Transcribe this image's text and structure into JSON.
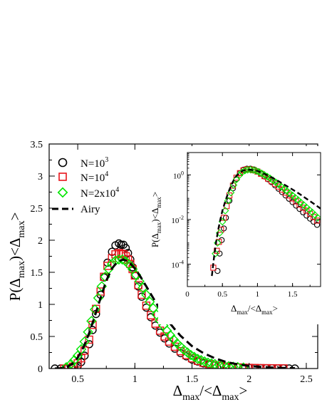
{
  "colors": {
    "n1e3": "#000000",
    "n1e4": "#e8141a",
    "n2e4": "#00e600",
    "airy": "#000000",
    "axes": "#000000",
    "background": "#ffffff"
  },
  "chart_data": [
    {
      "id": "main",
      "type": "scatter",
      "xlabel": {
        "base": "Δ",
        "sub1": "max",
        "mid": "/<Δ",
        "sub2": "max",
        "end": ">"
      },
      "ylabel": {
        "pre": "P(Δ",
        "sub1": "max",
        "mid": ")<Δ",
        "sub2": "max",
        "end": ">"
      },
      "xlim": [
        0.25,
        2.6
      ],
      "ylim": [
        0,
        3.5
      ],
      "xticks": [
        0.5,
        1,
        1.5,
        2,
        2.5
      ],
      "xtick_labels": [
        "0.5",
        "1",
        "1.5",
        "2",
        "2.5"
      ],
      "yticks": [
        0,
        0.5,
        1,
        1.5,
        2,
        2.5,
        3,
        3.5
      ],
      "ytick_labels": [
        "0",
        "0.5",
        "1",
        "1.5",
        "2",
        "2.5",
        "3",
        "3.5"
      ],
      "grid": false,
      "legend": {
        "placement": "top-left",
        "entries": [
          {
            "series": "N1e3",
            "base": "N=10",
            "sup": "3",
            "marker": "circle"
          },
          {
            "series": "N1e4",
            "base": "N=10",
            "sup": "4",
            "marker": "square"
          },
          {
            "series": "N2e4",
            "base": "N=2x10",
            "sup": "4",
            "marker": "diamond"
          },
          {
            "series": "airy",
            "text": "Airy",
            "marker": "dashed-line"
          }
        ]
      },
      "series": [
        {
          "id": "N1e3",
          "marker": "circle",
          "color": "#000000",
          "x": [
            0.3,
            0.35,
            0.4,
            0.45,
            0.5,
            0.53,
            0.56,
            0.6,
            0.63,
            0.66,
            0.7,
            0.73,
            0.76,
            0.8,
            0.83,
            0.86,
            0.88,
            0.9,
            0.92,
            0.94,
            0.96,
            0.98,
            1.0,
            1.03,
            1.06,
            1.1,
            1.14,
            1.18,
            1.22,
            1.26,
            1.3,
            1.35,
            1.4,
            1.45,
            1.5,
            1.55,
            1.6,
            1.65,
            1.7,
            1.75,
            1.8,
            1.85,
            1.9,
            1.95,
            2.0,
            2.05,
            2.1,
            2.15,
            2.2,
            2.25,
            2.3,
            2.35,
            2.4
          ],
          "y": [
            0,
            0,
            0,
            0.01,
            0.04,
            0.1,
            0.2,
            0.38,
            0.6,
            0.85,
            1.15,
            1.42,
            1.65,
            1.82,
            1.92,
            1.95,
            1.93,
            1.93,
            1.88,
            1.8,
            1.7,
            1.58,
            1.45,
            1.28,
            1.12,
            0.95,
            0.8,
            0.67,
            0.56,
            0.47,
            0.39,
            0.31,
            0.24,
            0.19,
            0.14,
            0.11,
            0.08,
            0.06,
            0.05,
            0.04,
            0.03,
            0.025,
            0.02,
            0.015,
            0.01,
            0.008,
            0.006,
            0.005,
            0.004,
            0.003,
            0.002,
            0.001,
            0.001
          ]
        },
        {
          "id": "N1e4",
          "marker": "square",
          "color": "#e8141a",
          "x": [
            0.38,
            0.42,
            0.46,
            0.5,
            0.53,
            0.56,
            0.6,
            0.63,
            0.66,
            0.7,
            0.73,
            0.76,
            0.8,
            0.83,
            0.86,
            0.88,
            0.9,
            0.92,
            0.94,
            0.96,
            0.98,
            1.0,
            1.03,
            1.06,
            1.1,
            1.14,
            1.18,
            1.22,
            1.26,
            1.3,
            1.35,
            1.4,
            1.45,
            1.5,
            1.55,
            1.6,
            1.65,
            1.7,
            1.75,
            1.8,
            1.85,
            1.9,
            1.95,
            2.0,
            2.05,
            2.1,
            2.15,
            2.2,
            2.25,
            2.3
          ],
          "y": [
            0,
            0.01,
            0.03,
            0.08,
            0.16,
            0.28,
            0.45,
            0.68,
            0.93,
            1.2,
            1.43,
            1.6,
            1.72,
            1.78,
            1.8,
            1.79,
            1.78,
            1.75,
            1.7,
            1.63,
            1.55,
            1.45,
            1.3,
            1.15,
            0.98,
            0.83,
            0.7,
            0.59,
            0.5,
            0.42,
            0.34,
            0.27,
            0.21,
            0.16,
            0.12,
            0.09,
            0.07,
            0.05,
            0.04,
            0.03,
            0.023,
            0.017,
            0.013,
            0.01,
            0.008,
            0.006,
            0.005,
            0.004,
            0.003,
            0.002
          ]
        },
        {
          "id": "N2e4",
          "marker": "diamond",
          "color": "#00e600",
          "x": [
            0.4,
            0.44,
            0.47,
            0.5,
            0.53,
            0.56,
            0.59,
            0.62,
            0.65,
            0.68,
            0.71,
            0.74,
            0.77,
            0.8,
            0.83,
            0.86,
            0.89,
            0.92,
            0.95,
            0.98,
            1.01,
            1.04,
            1.07,
            1.1,
            1.13,
            1.16,
            1.19,
            1.22,
            1.25,
            1.28,
            1.31,
            1.34,
            1.37,
            1.4,
            1.43,
            1.46,
            1.49,
            1.52,
            1.55,
            1.58,
            1.61,
            1.64,
            1.67,
            1.7,
            1.74,
            1.78,
            1.82,
            1.86,
            1.9,
            1.95
          ],
          "y": [
            0.02,
            0.07,
            0.13,
            0.2,
            0.3,
            0.42,
            0.57,
            0.74,
            0.92,
            1.1,
            1.28,
            1.43,
            1.55,
            1.63,
            1.68,
            1.7,
            1.7,
            1.67,
            1.62,
            1.55,
            1.46,
            1.36,
            1.26,
            1.15,
            1.04,
            0.94,
            0.84,
            0.75,
            0.67,
            0.59,
            0.52,
            0.45,
            0.39,
            0.34,
            0.29,
            0.25,
            0.21,
            0.18,
            0.15,
            0.13,
            0.11,
            0.09,
            0.08,
            0.07,
            0.055,
            0.045,
            0.035,
            0.028,
            0.022,
            0.016
          ]
        },
        {
          "id": "airy",
          "marker": "dashed-line",
          "color": "#000000",
          "x": [
            0.3,
            0.35,
            0.4,
            0.45,
            0.5,
            0.55,
            0.6,
            0.65,
            0.7,
            0.75,
            0.8,
            0.85,
            0.9,
            0.95,
            1.0,
            1.05,
            1.1,
            1.15,
            1.2,
            1.25,
            1.3,
            1.35,
            1.4,
            1.5,
            1.6,
            1.7,
            1.8,
            1.9,
            2.0,
            2.1,
            2.2,
            2.3,
            2.4
          ],
          "y": [
            0,
            0.004,
            0.02,
            0.07,
            0.17,
            0.33,
            0.55,
            0.82,
            1.1,
            1.37,
            1.56,
            1.67,
            1.7,
            1.66,
            1.56,
            1.43,
            1.28,
            1.13,
            0.98,
            0.84,
            0.72,
            0.61,
            0.51,
            0.35,
            0.24,
            0.16,
            0.1,
            0.065,
            0.04,
            0.025,
            0.015,
            0.009,
            0.005
          ]
        }
      ]
    },
    {
      "id": "inset",
      "type": "scatter",
      "log_y": true,
      "xlabel": {
        "base": "Δ",
        "sub1": "max",
        "mid": "/<Δ",
        "sub2": "max",
        "end": ">"
      },
      "ylabel": {
        "pre": "P(Δ",
        "sub1": "max",
        "mid": ")<Δ",
        "sub2": "max",
        "end": ">"
      },
      "xlim": [
        0,
        1.9
      ],
      "ylim": [
        1e-05,
        10
      ],
      "xticks": [
        0,
        0.5,
        1,
        1.5
      ],
      "xtick_labels": [
        "0",
        "0.5",
        "1",
        "1.5"
      ],
      "yticks": [
        0.0001,
        0.01,
        1
      ],
      "ytick_labels": [
        {
          "base": "10",
          "sup": "-4"
        },
        {
          "base": "10",
          "sup": "-2"
        },
        {
          "base": "10",
          "sup": "0"
        }
      ],
      "grid": false,
      "series": [
        {
          "id": "N1e3",
          "marker": "circle",
          "color": "#000000",
          "x": [
            0.43,
            0.46,
            0.49,
            0.52,
            0.55,
            0.6,
            0.65,
            0.7,
            0.75,
            0.8,
            0.85,
            0.9,
            0.95,
            1.0,
            1.05,
            1.1,
            1.15,
            1.2,
            1.25,
            1.3,
            1.35,
            1.4,
            1.45,
            1.5,
            1.55,
            1.6,
            1.65,
            1.7,
            1.75,
            1.8,
            1.85
          ],
          "y": [
            5e-05,
            0.0003,
            0.0012,
            0.004,
            0.012,
            0.07,
            0.25,
            0.65,
            1.2,
            1.7,
            1.9,
            1.9,
            1.75,
            1.45,
            1.12,
            0.85,
            0.63,
            0.47,
            0.34,
            0.24,
            0.17,
            0.12,
            0.085,
            0.06,
            0.042,
            0.03,
            0.021,
            0.015,
            0.011,
            0.008,
            0.0058
          ]
        },
        {
          "id": "N1e4",
          "marker": "square",
          "color": "#e8141a",
          "x": [
            0.37,
            0.42,
            0.45,
            0.48,
            0.52,
            0.56,
            0.6,
            0.65,
            0.7,
            0.75,
            0.8,
            0.85,
            0.9,
            0.95,
            1.0,
            1.05,
            1.1,
            1.15,
            1.2,
            1.25,
            1.3,
            1.35,
            1.4,
            1.45,
            1.5,
            1.55,
            1.6,
            1.65,
            1.7,
            1.75,
            1.8,
            1.85
          ],
          "y": [
            7e-05,
            0.0004,
            0.001,
            0.0035,
            0.012,
            0.04,
            0.12,
            0.33,
            0.75,
            1.2,
            1.6,
            1.78,
            1.78,
            1.62,
            1.4,
            1.12,
            0.88,
            0.68,
            0.52,
            0.4,
            0.3,
            0.22,
            0.16,
            0.12,
            0.088,
            0.065,
            0.047,
            0.034,
            0.025,
            0.018,
            0.013,
            0.009
          ]
        },
        {
          "id": "N2e4",
          "marker": "diamond",
          "color": "#00e600",
          "x": [
            0.4,
            0.43,
            0.46,
            0.5,
            0.54,
            0.58,
            0.62,
            0.66,
            0.7,
            0.74,
            0.78,
            0.82,
            0.86,
            0.9,
            0.94,
            0.98,
            1.02,
            1.06,
            1.1,
            1.14,
            1.18,
            1.22,
            1.26,
            1.3,
            1.34,
            1.38,
            1.42,
            1.46,
            1.5,
            1.54,
            1.58,
            1.62,
            1.66,
            1.7,
            1.74,
            1.78,
            1.82,
            1.86
          ],
          "y": [
            0.0003,
            0.0009,
            0.0025,
            0.008,
            0.025,
            0.07,
            0.16,
            0.35,
            0.62,
            0.95,
            1.3,
            1.55,
            1.68,
            1.7,
            1.64,
            1.52,
            1.36,
            1.18,
            1.0,
            0.84,
            0.7,
            0.58,
            0.47,
            0.38,
            0.3,
            0.24,
            0.19,
            0.15,
            0.12,
            0.095,
            0.075,
            0.058,
            0.045,
            0.035,
            0.027,
            0.021,
            0.016,
            0.012
          ]
        },
        {
          "id": "airy",
          "marker": "dashed-line",
          "color": "#000000",
          "x": [
            0.35,
            0.38,
            0.41,
            0.44,
            0.47,
            0.5,
            0.55,
            0.6,
            0.65,
            0.7,
            0.75,
            0.8,
            0.85,
            0.9,
            0.95,
            1.0,
            1.1,
            1.2,
            1.3,
            1.4,
            1.5,
            1.6,
            1.7,
            1.8,
            1.9
          ],
          "y": [
            3e-05,
            0.0002,
            0.001,
            0.0035,
            0.01,
            0.025,
            0.08,
            0.22,
            0.5,
            0.9,
            1.3,
            1.58,
            1.7,
            1.7,
            1.62,
            1.5,
            1.1,
            0.78,
            0.52,
            0.34,
            0.22,
            0.14,
            0.085,
            0.052,
            0.031
          ]
        }
      ]
    }
  ]
}
